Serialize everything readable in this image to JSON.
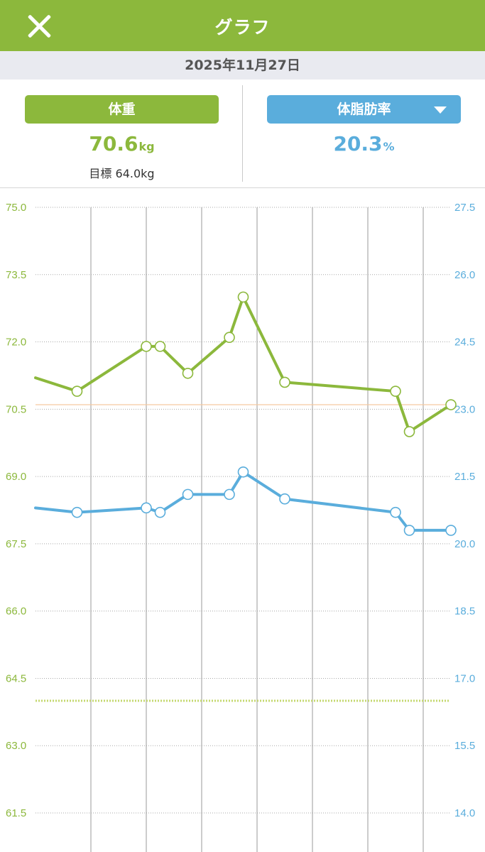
{
  "header": {
    "title": "グラフ",
    "close_icon": "close-icon"
  },
  "date": "2025年11月27日",
  "summary": {
    "weight": {
      "label": "体重",
      "value": "70.6",
      "unit": "kg",
      "goal": "目標 64.0kg"
    },
    "fat": {
      "label": "体脂肪率",
      "value": "20.3",
      "unit": "%",
      "dropdown_icon": "chevron-down-icon"
    }
  },
  "colors": {
    "weight": "#8cb83c",
    "fat": "#5aaddc",
    "average_line": "#f5c9a0",
    "goal_line": "#c5d870"
  },
  "chart_data": {
    "type": "line",
    "left_axis": {
      "ylim": [
        61.5,
        75.0
      ],
      "ticks": [
        "61.5",
        "63.0",
        "64.5",
        "66.0",
        "67.5",
        "69.0",
        "70.5",
        "72.0",
        "73.5",
        "75.0"
      ]
    },
    "right_axis": {
      "ylim": [
        14.0,
        27.5
      ],
      "ticks": [
        "14.0",
        "15.5",
        "17.0",
        "18.5",
        "20.0",
        "21.5",
        "23.0",
        "24.5",
        "26.0",
        "27.5"
      ]
    },
    "x_slots": 16,
    "vertical_grid_slots": [
      2,
      4,
      6,
      8,
      10,
      12,
      14
    ],
    "series": [
      {
        "axis": "left",
        "x": [
          0.0,
          1.5,
          4.0,
          4.5,
          5.5,
          7.0,
          7.5,
          9.0,
          13.0,
          13.5,
          15.0
        ],
        "values": [
          71.2,
          70.9,
          71.9,
          71.9,
          71.3,
          72.1,
          73.0,
          71.1,
          70.9,
          70.0,
          70.6
        ],
        "markers": [
          false,
          true,
          true,
          true,
          true,
          true,
          true,
          true,
          true,
          true,
          true
        ]
      },
      {
        "axis": "right",
        "x": [
          0.0,
          1.5,
          4.0,
          4.5,
          5.5,
          7.0,
          7.5,
          9.0,
          13.0,
          13.5,
          15.0
        ],
        "values": [
          20.8,
          20.7,
          20.8,
          20.7,
          21.1,
          21.1,
          21.6,
          21.0,
          20.7,
          20.3,
          20.3
        ],
        "markers": [
          false,
          true,
          true,
          true,
          true,
          true,
          true,
          true,
          true,
          true,
          true
        ]
      }
    ],
    "reference_lines": [
      {
        "axis": "left",
        "value": 70.6,
        "style": "solid"
      },
      {
        "axis": "left",
        "value": 64.0,
        "style": "dotted"
      }
    ],
    "grid": true
  }
}
